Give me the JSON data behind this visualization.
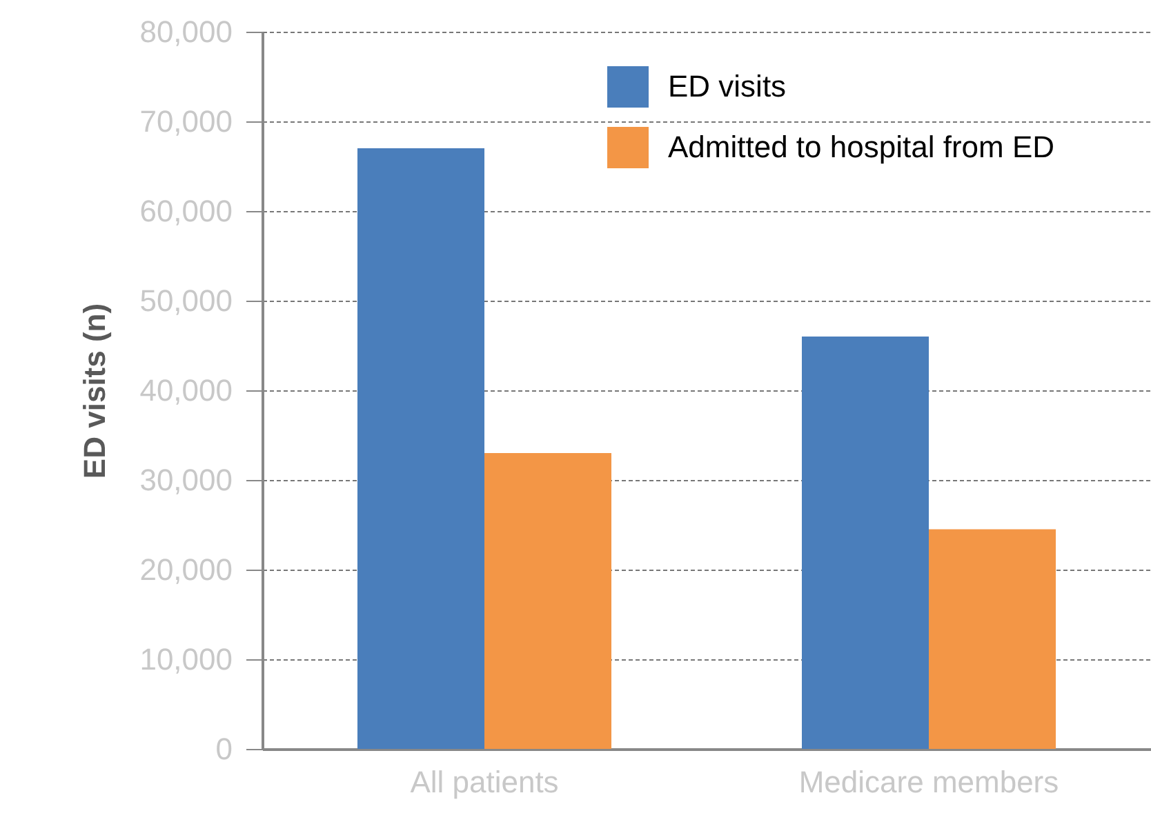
{
  "chart_data": {
    "type": "bar",
    "ylabel": "ED visits (n)",
    "categories": [
      "All patients",
      "Medicare members"
    ],
    "series": [
      {
        "name": "ED visits",
        "color": "#4a7ebb",
        "values": [
          67000,
          46000
        ]
      },
      {
        "name": "Admitted to hospital from ED",
        "color": "#f39646",
        "values": [
          33000,
          24500
        ]
      }
    ],
    "ylim": [
      0,
      80000
    ],
    "yticks": [
      0,
      {
        "value": 10000,
        "label": "10,000"
      },
      {
        "value": 20000,
        "label": "20,000"
      },
      {
        "value": 30000,
        "label": "30,000"
      },
      {
        "value": 40000,
        "label": "40,000"
      },
      {
        "value": 50000,
        "label": "50,000"
      },
      {
        "value": 60000,
        "label": "60,000"
      },
      {
        "value": 70000,
        "label": "70,000"
      },
      {
        "value": 80000,
        "label": "80,000"
      }
    ],
    "grid": "y",
    "legend": "top"
  }
}
